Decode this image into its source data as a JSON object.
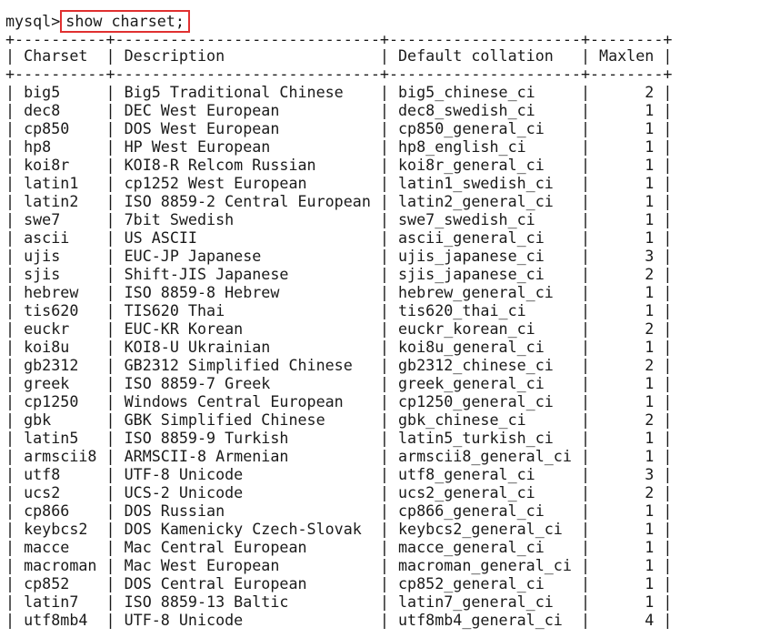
{
  "prompt": "mysql>",
  "command": "show charset;",
  "separator": "+----------+-----------------------------+---------------------+--------+",
  "headers": [
    "Charset",
    "Description",
    "Default collation",
    "Maxlen"
  ],
  "rows": [
    [
      "big5",
      "Big5 Traditional Chinese",
      "big5_chinese_ci",
      "2"
    ],
    [
      "dec8",
      "DEC West European",
      "dec8_swedish_ci",
      "1"
    ],
    [
      "cp850",
      "DOS West European",
      "cp850_general_ci",
      "1"
    ],
    [
      "hp8",
      "HP West European",
      "hp8_english_ci",
      "1"
    ],
    [
      "koi8r",
      "KOI8-R Relcom Russian",
      "koi8r_general_ci",
      "1"
    ],
    [
      "latin1",
      "cp1252 West European",
      "latin1_swedish_ci",
      "1"
    ],
    [
      "latin2",
      "ISO 8859-2 Central European",
      "latin2_general_ci",
      "1"
    ],
    [
      "swe7",
      "7bit Swedish",
      "swe7_swedish_ci",
      "1"
    ],
    [
      "ascii",
      "US ASCII",
      "ascii_general_ci",
      "1"
    ],
    [
      "ujis",
      "EUC-JP Japanese",
      "ujis_japanese_ci",
      "3"
    ],
    [
      "sjis",
      "Shift-JIS Japanese",
      "sjis_japanese_ci",
      "2"
    ],
    [
      "hebrew",
      "ISO 8859-8 Hebrew",
      "hebrew_general_ci",
      "1"
    ],
    [
      "tis620",
      "TIS620 Thai",
      "tis620_thai_ci",
      "1"
    ],
    [
      "euckr",
      "EUC-KR Korean",
      "euckr_korean_ci",
      "2"
    ],
    [
      "koi8u",
      "KOI8-U Ukrainian",
      "koi8u_general_ci",
      "1"
    ],
    [
      "gb2312",
      "GB2312 Simplified Chinese",
      "gb2312_chinese_ci",
      "2"
    ],
    [
      "greek",
      "ISO 8859-7 Greek",
      "greek_general_ci",
      "1"
    ],
    [
      "cp1250",
      "Windows Central European",
      "cp1250_general_ci",
      "1"
    ],
    [
      "gbk",
      "GBK Simplified Chinese",
      "gbk_chinese_ci",
      "2"
    ],
    [
      "latin5",
      "ISO 8859-9 Turkish",
      "latin5_turkish_ci",
      "1"
    ],
    [
      "armscii8",
      "ARMSCII-8 Armenian",
      "armscii8_general_ci",
      "1"
    ],
    [
      "utf8",
      "UTF-8 Unicode",
      "utf8_general_ci",
      "3"
    ],
    [
      "ucs2",
      "UCS-2 Unicode",
      "ucs2_general_ci",
      "2"
    ],
    [
      "cp866",
      "DOS Russian",
      "cp866_general_ci",
      "1"
    ],
    [
      "keybcs2",
      "DOS Kamenicky Czech-Slovak",
      "keybcs2_general_ci",
      "1"
    ],
    [
      "macce",
      "Mac Central European",
      "macce_general_ci",
      "1"
    ],
    [
      "macroman",
      "Mac West European",
      "macroman_general_ci",
      "1"
    ],
    [
      "cp852",
      "DOS Central European",
      "cp852_general_ci",
      "1"
    ],
    [
      "latin7",
      "ISO 8859-13 Baltic",
      "latin7_general_ci",
      "1"
    ],
    [
      "utf8mb4",
      "UTF-8 Unicode",
      "utf8mb4_general_ci",
      "4"
    ]
  ]
}
